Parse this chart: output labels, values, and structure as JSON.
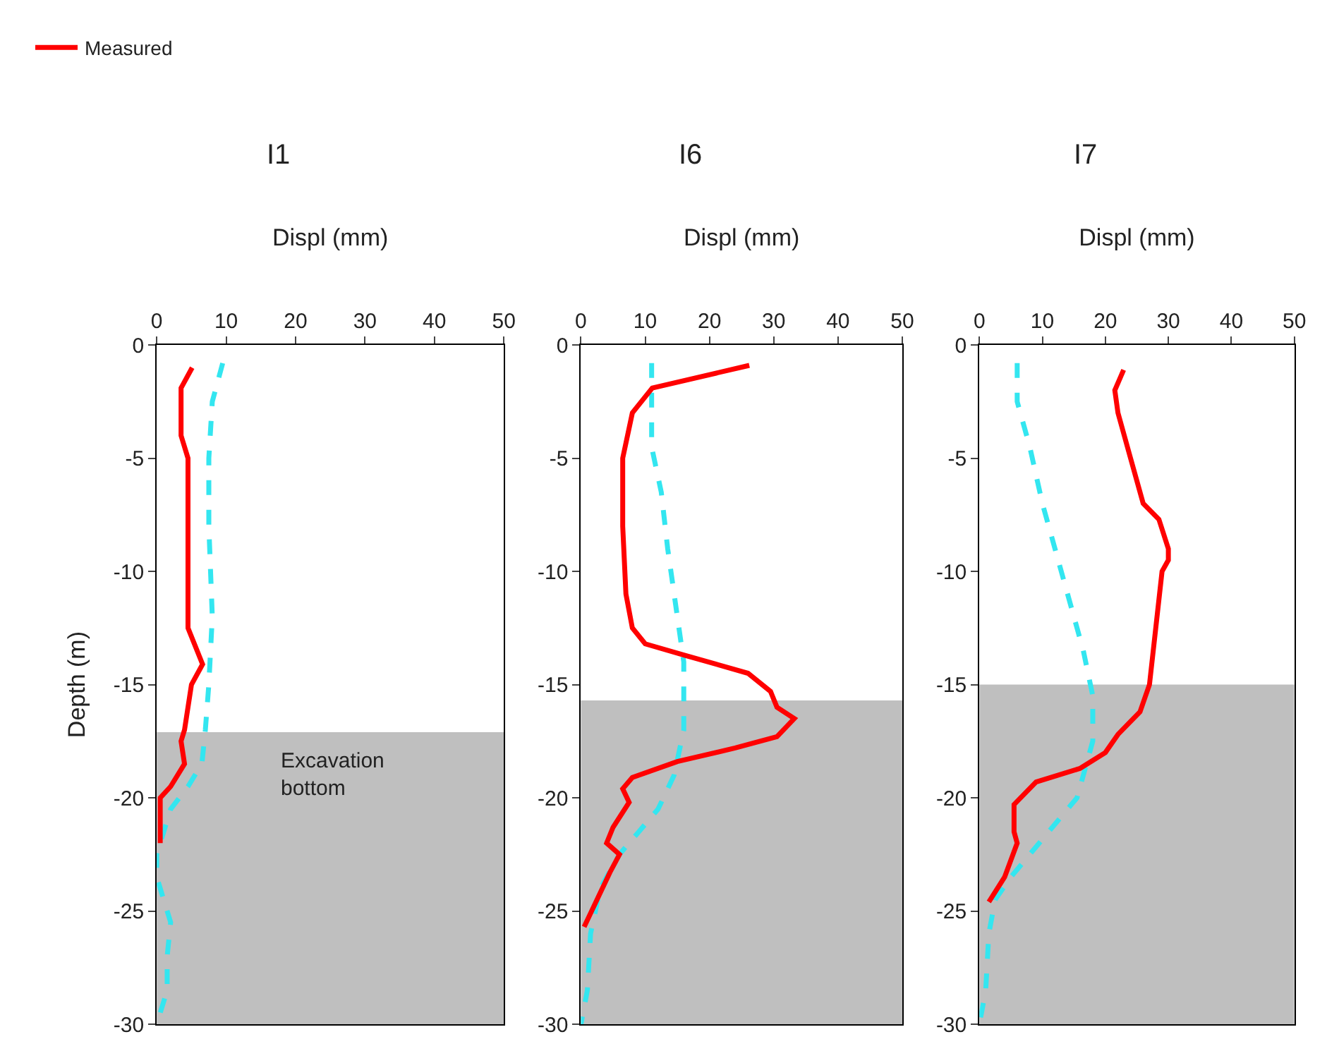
{
  "chart_data": [
    {
      "type": "line",
      "title": "I1",
      "xlabel": "Displ (mm)",
      "ylabel": "Depth (m)",
      "xlim": [
        0,
        50
      ],
      "xticks": [
        0,
        10,
        20,
        30,
        40,
        50
      ],
      "ylim": [
        -30,
        0
      ],
      "yticks": [
        0,
        -5,
        -10,
        -15,
        -20,
        -25,
        -30
      ],
      "legend": "top left",
      "grid": false,
      "marker": "none",
      "bands": [
        {
          "axis": "y",
          "from": -30,
          "to": -17.1,
          "label": "Excavation bottom",
          "color": "#bfbfbf"
        }
      ],
      "series": [
        {
          "color": "#33e6f0",
          "line_style": "dashed",
          "x": [
            9.5,
            8,
            7.5,
            7.5,
            8,
            7.5,
            7,
            6.5,
            4.5,
            2,
            0,
            0,
            2,
            1.5,
            1.5,
            0
          ],
          "values": [
            -0.8,
            -2.5,
            -5,
            -8,
            -12,
            -15,
            -17,
            -18.5,
            -19.5,
            -20.5,
            -22.5,
            -23.5,
            -25.5,
            -27,
            -28.5,
            -30
          ]
        },
        {
          "name": "Measured",
          "color": "#ff0000",
          "line_style": "solid",
          "x": [
            5.1,
            3.5,
            3.5,
            4.5,
            4.5,
            4.5,
            6.6,
            5,
            4,
            3.5,
            4,
            2,
            0.5,
            0.5
          ],
          "values": [
            -1,
            -1.9,
            -4,
            -5,
            -9,
            -12.5,
            -14.1,
            -15,
            -17,
            -17.5,
            -18.5,
            -19.5,
            -20,
            -22
          ]
        }
      ]
    },
    {
      "type": "line",
      "title": "I6",
      "xlabel": "Displ (mm)",
      "xlim": [
        0,
        50
      ],
      "xticks": [
        0,
        10,
        20,
        30,
        40,
        50
      ],
      "ylim": [
        -30,
        0
      ],
      "yticks": [
        0,
        -5,
        -10,
        -15,
        -20,
        -25,
        -30
      ],
      "grid": false,
      "marker": "none",
      "bands": [
        {
          "axis": "y",
          "from": -30,
          "to": -15.7,
          "color": "#bfbfbf"
        }
      ],
      "series": [
        {
          "color": "#33e6f0",
          "line_style": "dashed",
          "x": [
            11,
            11,
            12.5,
            13.5,
            15,
            16,
            16,
            14.5,
            12,
            9,
            6,
            3,
            1.5,
            1,
            0
          ],
          "values": [
            -0.8,
            -4.5,
            -6.5,
            -9,
            -12,
            -14,
            -17,
            -19,
            -20.5,
            -21.5,
            -22.5,
            -24,
            -26,
            -28.5,
            -30
          ]
        },
        {
          "color": "#ff0000",
          "line_style": "solid",
          "x": [
            26.2,
            11.1,
            8,
            6.5,
            6.5,
            7,
            8,
            10,
            16.1,
            26,
            29.5,
            30.5,
            33.2,
            30.5,
            24,
            15,
            8,
            6.5,
            7.5,
            5,
            4,
            6,
            4.5,
            0.5
          ],
          "values": [
            -0.9,
            -1.9,
            -3,
            -5,
            -8,
            -11,
            -12.5,
            -13.2,
            -13.7,
            -14.5,
            -15.3,
            -16,
            -16.5,
            -17.3,
            -17.8,
            -18.4,
            -19.1,
            -19.6,
            -20.2,
            -21.3,
            -22,
            -22.5,
            -23.3,
            -25.7
          ]
        }
      ]
    },
    {
      "type": "line",
      "title": "I7",
      "xlabel": "Displ (mm)",
      "xlim": [
        0,
        50
      ],
      "xticks": [
        0,
        10,
        20,
        30,
        40,
        50
      ],
      "ylim": [
        -30,
        0
      ],
      "yticks": [
        0,
        -5,
        -10,
        -15,
        -20,
        -25,
        -30
      ],
      "grid": false,
      "marker": "none",
      "bands": [
        {
          "axis": "y",
          "from": -30,
          "to": -15,
          "color": "#bfbfbf"
        }
      ],
      "series": [
        {
          "color": "#33e6f0",
          "line_style": "dashed",
          "x": [
            6,
            6,
            8,
            10,
            12,
            14.5,
            16.5,
            18,
            18,
            15.5,
            11,
            5,
            2.5,
            1.5,
            1,
            0
          ],
          "values": [
            -0.8,
            -2.5,
            -4.5,
            -7,
            -9,
            -11.5,
            -13.5,
            -15.5,
            -17.5,
            -20,
            -21.5,
            -23.5,
            -24.5,
            -26,
            -28.5,
            -30
          ]
        },
        {
          "color": "#ff0000",
          "line_style": "solid",
          "x": [
            22.9,
            21.5,
            22,
            24,
            26,
            28.5,
            30,
            30,
            29,
            28,
            27,
            25.5,
            22,
            20,
            16,
            9,
            5.5,
            5.5,
            6,
            4,
            1.5
          ],
          "values": [
            -1.1,
            -2,
            -3,
            -5,
            -7,
            -7.7,
            -9,
            -9.5,
            -10,
            -12.5,
            -15,
            -16.2,
            -17.2,
            -18,
            -18.7,
            -19.3,
            -20.3,
            -21.5,
            -22,
            -23.5,
            -24.6
          ]
        }
      ]
    }
  ]
}
